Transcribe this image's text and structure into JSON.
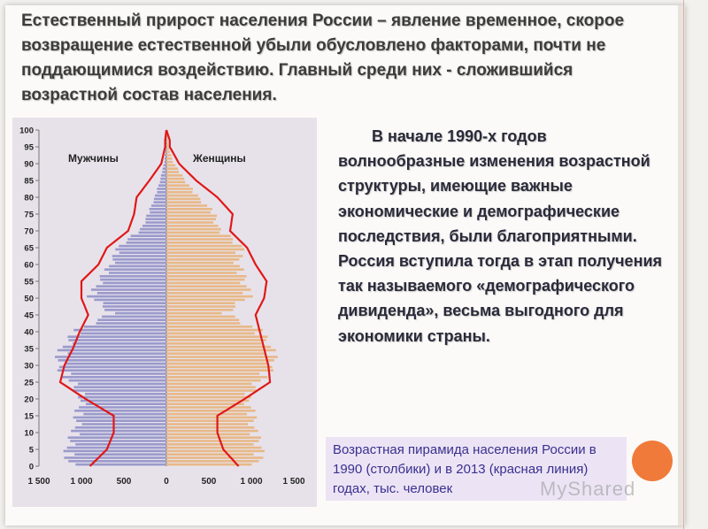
{
  "slide": {
    "title": "Естественный прирост населения России – явление временное, скорое возвращение естественной убыли обусловлено факторами, почти не поддающимися воздействию. Главный среди них - сложившийся возрастной состав населения.",
    "body": "В начале 1990-х годов волнообразные изменения возрастной структуры, имеющие важные экономические и демографические последствия, были благоприятными. Россия вступила тогда в этап получения так называемого «демографического дивиденда», весьма выгодного для экономики страны.",
    "caption": "Возрастная пирамида населения России в 1990 (столбики) и в 2013 (красная линия) годах, тыс. человек",
    "watermark": "MyShared"
  },
  "colors": {
    "male_bars": "#9a9acc",
    "female_bars": "#e8b888",
    "line_2013": "#e01818",
    "accent_circle": "#f07a3a",
    "caption_text": "#3a3090"
  },
  "chart_data": {
    "type": "bar",
    "orientation": "horizontal-population-pyramid",
    "legend": [
      "Мужчины",
      "Женщины"
    ],
    "x_ticks": [
      "1 500",
      "1 000",
      "500",
      "0",
      "500",
      "1 000",
      "1 500"
    ],
    "xlim": [
      -1500,
      1500
    ],
    "y_ticks": [
      "0",
      "5",
      "10",
      "15",
      "20",
      "25",
      "30",
      "35",
      "40",
      "45",
      "50",
      "55",
      "60",
      "65",
      "70",
      "75",
      "80",
      "85",
      "90",
      "95",
      "100"
    ],
    "ylim": [
      0,
      100
    ],
    "ages": [
      0,
      5,
      10,
      15,
      20,
      25,
      30,
      35,
      40,
      45,
      50,
      55,
      60,
      65,
      70,
      75,
      80,
      85,
      90,
      95
    ],
    "series": [
      {
        "name": "Мужчины",
        "values": [
          1150,
          1170,
          1080,
          1050,
          1000,
          1150,
          1290,
          1220,
          1050,
          650,
          900,
          780,
          650,
          560,
          300,
          210,
          130,
          70,
          25,
          8
        ]
      },
      {
        "name": "Женщины",
        "values": [
          1080,
          1120,
          1040,
          1020,
          960,
          1110,
          1280,
          1230,
          1090,
          700,
          980,
          920,
          850,
          890,
          620,
          560,
          360,
          210,
          80,
          20
        ]
      }
    ],
    "line_2013": {
      "male": [
        900,
        700,
        620,
        620,
        950,
        1250,
        1200,
        1100,
        1020,
        920,
        1000,
        1000,
        800,
        700,
        450,
        380,
        350,
        200,
        60,
        15
      ],
      "female": [
        850,
        670,
        600,
        600,
        920,
        1220,
        1200,
        1150,
        1100,
        1050,
        1150,
        1180,
        1050,
        950,
        750,
        780,
        600,
        350,
        150,
        40
      ]
    }
  }
}
